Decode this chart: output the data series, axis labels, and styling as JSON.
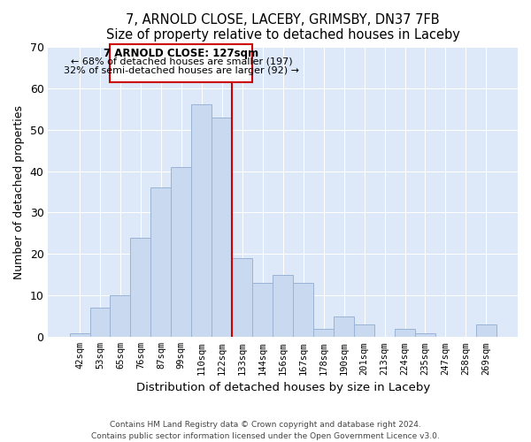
{
  "title": "7, ARNOLD CLOSE, LACEBY, GRIMSBY, DN37 7FB",
  "subtitle": "Size of property relative to detached houses in Laceby",
  "xlabel": "Distribution of detached houses by size in Laceby",
  "ylabel": "Number of detached properties",
  "bar_labels": [
    "42sqm",
    "53sqm",
    "65sqm",
    "76sqm",
    "87sqm",
    "99sqm",
    "110sqm",
    "122sqm",
    "133sqm",
    "144sqm",
    "156sqm",
    "167sqm",
    "178sqm",
    "190sqm",
    "201sqm",
    "213sqm",
    "224sqm",
    "235sqm",
    "247sqm",
    "258sqm",
    "269sqm"
  ],
  "bar_values": [
    1,
    7,
    10,
    24,
    36,
    41,
    56,
    53,
    19,
    13,
    15,
    13,
    2,
    5,
    3,
    0,
    2,
    1,
    0,
    0,
    3
  ],
  "bar_color": "#c9d9f0",
  "bar_edge_color": "#9ab3d5",
  "vline_color": "#cc0000",
  "ylim": [
    0,
    70
  ],
  "yticks": [
    0,
    10,
    20,
    30,
    40,
    50,
    60,
    70
  ],
  "annotation_title": "7 ARNOLD CLOSE: 127sqm",
  "annotation_line1": "← 68% of detached houses are smaller (197)",
  "annotation_line2": "32% of semi-detached houses are larger (92) →",
  "annotation_box_color": "#ffffff",
  "annotation_box_edge": "#cc0000",
  "footer_line1": "Contains HM Land Registry data © Crown copyright and database right 2024.",
  "footer_line2": "Contains public sector information licensed under the Open Government Licence v3.0.",
  "fig_background": "#ffffff",
  "ax_background": "#dde8f8",
  "grid_color": "#ffffff",
  "spine_color": "#aaaaaa"
}
